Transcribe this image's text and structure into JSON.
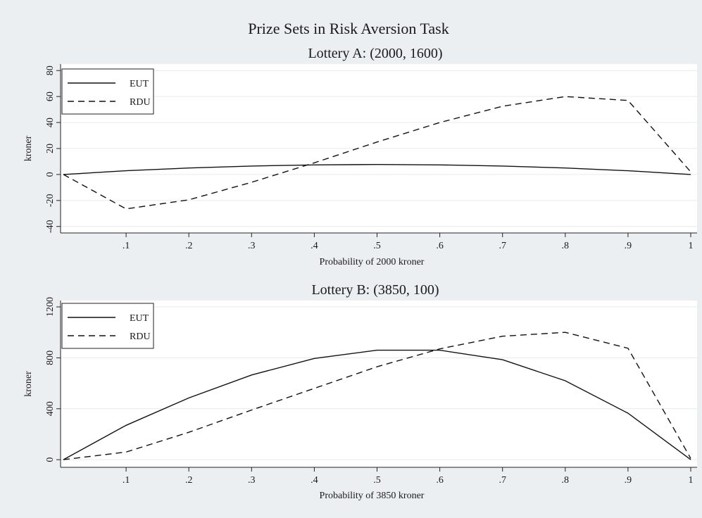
{
  "figure": {
    "title": "Prize Sets in Risk Aversion Task"
  },
  "chart_data": [
    {
      "type": "line",
      "title": "Lottery A: (2000, 1600)",
      "xlabel": "Probability of 2000 kroner",
      "ylabel": "kroner",
      "xlim": [
        0,
        1
      ],
      "ylim": [
        -45,
        85
      ],
      "x_ticks": [
        0.1,
        0.2,
        0.3,
        0.4,
        0.5,
        0.6,
        0.7,
        0.8,
        0.9,
        1
      ],
      "x_tick_labels": [
        ".1",
        ".2",
        ".3",
        ".4",
        ".5",
        ".6",
        ".7",
        ".8",
        ".9",
        "1"
      ],
      "y_ticks": [
        -40,
        -20,
        0,
        20,
        40,
        60,
        80
      ],
      "y_tick_labels": [
        "-40",
        "-20",
        "0",
        "20",
        "40",
        "60",
        "80"
      ],
      "grid": true,
      "legend_position": "top-left",
      "x": [
        0,
        0.1,
        0.2,
        0.3,
        0.4,
        0.5,
        0.6,
        0.7,
        0.8,
        0.9,
        1
      ],
      "series": [
        {
          "name": "EUT",
          "style": "solid",
          "values": [
            0,
            2.9,
            5.0,
            6.5,
            7.4,
            7.7,
            7.4,
            6.5,
            5.0,
            2.9,
            0
          ]
        },
        {
          "name": "RDU",
          "style": "dashed",
          "values": [
            0,
            -26.5,
            -19.5,
            -6,
            9,
            25,
            40,
            52.5,
            60,
            57,
            2
          ]
        }
      ]
    },
    {
      "type": "line",
      "title": "Lottery B: (3850, 100)",
      "xlabel": "Probability of 3850 kroner",
      "ylabel": "kroner",
      "xlim": [
        0,
        1
      ],
      "ylim": [
        -60,
        1250
      ],
      "x_ticks": [
        0.1,
        0.2,
        0.3,
        0.4,
        0.5,
        0.6,
        0.7,
        0.8,
        0.9,
        1
      ],
      "x_tick_labels": [
        ".1",
        ".2",
        ".3",
        ".4",
        ".5",
        ".6",
        ".7",
        ".8",
        ".9",
        "1"
      ],
      "y_ticks": [
        0,
        400,
        800,
        1200
      ],
      "y_tick_labels": [
        "0",
        "400",
        "800",
        "1200"
      ],
      "grid": true,
      "legend_position": "top-left",
      "x": [
        0,
        0.1,
        0.2,
        0.3,
        0.4,
        0.5,
        0.6,
        0.7,
        0.8,
        0.9,
        1
      ],
      "series": [
        {
          "name": "EUT",
          "style": "solid",
          "values": [
            0,
            270,
            485,
            665,
            795,
            860,
            860,
            785,
            620,
            365,
            0
          ]
        },
        {
          "name": "RDU",
          "style": "dashed",
          "values": [
            0,
            60,
            215,
            390,
            560,
            730,
            870,
            970,
            1000,
            875,
            10
          ]
        }
      ]
    }
  ]
}
